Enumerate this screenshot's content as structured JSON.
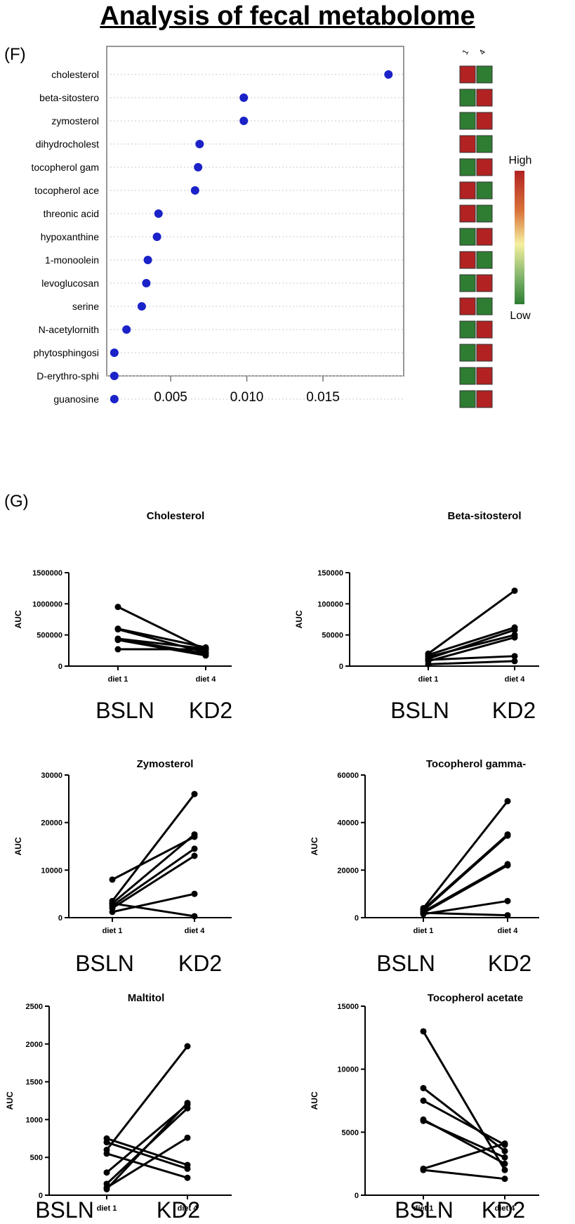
{
  "title": "Analysis of fecal metabolome",
  "panel_f": {
    "label": "(F)"
  },
  "panel_g": {
    "label": "(G)"
  },
  "colors": {
    "dot": "#1a22c8",
    "high": "#b22222",
    "low": "#2e7d32",
    "mid": "#f5f0a0"
  },
  "chart_data": [
    {
      "type": "scatter",
      "title": "",
      "xlabel": "",
      "ylabel": "",
      "xlim": [
        0.0008,
        0.0203
      ],
      "xticks": [
        "0.005",
        "0.010",
        "0.015"
      ],
      "xtick_values": [
        0.005,
        0.01,
        0.015
      ],
      "categories": [
        "cholesterol",
        "beta-sitostero",
        "zymosterol",
        "dihydrocholest",
        "tocopherol gam",
        "tocopherol ace",
        "threonic acid",
        "hypoxanthine",
        "1-monoolein",
        "levoglucosan",
        "serine",
        "N-acetylornith",
        "phytosphingosi",
        "D-erythro-sphi",
        "guanosine"
      ],
      "values": [
        0.0193,
        0.0098,
        0.0098,
        0.0069,
        0.0068,
        0.0066,
        0.0042,
        0.0041,
        0.0035,
        0.0034,
        0.0031,
        0.0021,
        0.0013,
        0.0013,
        0.0013
      ],
      "heatmap": {
        "column_labels": [
          "1",
          "4"
        ],
        "cells": [
          [
            "high",
            "low"
          ],
          [
            "low",
            "high"
          ],
          [
            "low",
            "high"
          ],
          [
            "high",
            "low"
          ],
          [
            "low",
            "high"
          ],
          [
            "high",
            "low"
          ],
          [
            "high",
            "low"
          ],
          [
            "low",
            "high"
          ],
          [
            "high",
            "low"
          ],
          [
            "low",
            "high"
          ],
          [
            "high",
            "low"
          ],
          [
            "low",
            "high"
          ],
          [
            "low",
            "high"
          ],
          [
            "low",
            "high"
          ],
          [
            "low",
            "high"
          ]
        ],
        "legend_high": "High",
        "legend_low": "Low"
      }
    },
    {
      "type": "line",
      "title": "Cholesterol",
      "ylabel": "AUC",
      "categories": [
        "diet 1",
        "diet 4"
      ],
      "group_labels": [
        "BSLN",
        "KD2"
      ],
      "ylim": [
        0,
        1500000
      ],
      "yticks": [
        "0",
        "500000",
        "1000000",
        "1500000"
      ],
      "ytick_values": [
        0,
        500000,
        1000000,
        1500000
      ],
      "series": [
        {
          "values": [
            950000,
            260000
          ]
        },
        {
          "values": [
            600000,
            300000
          ]
        },
        {
          "values": [
            590000,
            220000
          ]
        },
        {
          "values": [
            440000,
            280000
          ]
        },
        {
          "values": [
            430000,
            200000
          ]
        },
        {
          "values": [
            420000,
            170000
          ]
        },
        {
          "values": [
            270000,
            270000
          ]
        }
      ]
    },
    {
      "type": "line",
      "title": "Beta-sitosterol",
      "ylabel": "AUC",
      "categories": [
        "diet 1",
        "diet 4"
      ],
      "group_labels": [
        "BSLN",
        "KD2"
      ],
      "ylim": [
        0,
        150000
      ],
      "yticks": [
        "0",
        "50000",
        "100000",
        "150000"
      ],
      "ytick_values": [
        0,
        50000,
        100000,
        150000
      ],
      "series": [
        {
          "values": [
            20000,
            121000
          ]
        },
        {
          "values": [
            18000,
            62000
          ]
        },
        {
          "values": [
            12000,
            58000
          ]
        },
        {
          "values": [
            15000,
            50000
          ]
        },
        {
          "values": [
            8000,
            46000
          ]
        },
        {
          "values": [
            10000,
            16000
          ]
        },
        {
          "values": [
            3000,
            8000
          ]
        }
      ]
    },
    {
      "type": "line",
      "title": "Zymosterol",
      "ylabel": "AUC",
      "categories": [
        "diet 1",
        "diet 4"
      ],
      "group_labels": [
        "BSLN",
        "KD2"
      ],
      "ylim": [
        0,
        30000
      ],
      "yticks": [
        "0",
        "10000",
        "20000",
        "30000"
      ],
      "ytick_values": [
        0,
        10000,
        20000,
        30000
      ],
      "series": [
        {
          "values": [
            8000,
            17000
          ]
        },
        {
          "values": [
            3500,
            26000
          ]
        },
        {
          "values": [
            3000,
            17500
          ]
        },
        {
          "values": [
            2500,
            14500
          ]
        },
        {
          "values": [
            2000,
            13000
          ]
        },
        {
          "values": [
            1200,
            5000
          ]
        },
        {
          "values": [
            3000,
            300
          ]
        }
      ]
    },
    {
      "type": "line",
      "title": "Tocopherol gamma-",
      "ylabel": "AUC",
      "categories": [
        "diet 1",
        "diet 4"
      ],
      "group_labels": [
        "BSLN",
        "KD2"
      ],
      "ylim": [
        0,
        60000
      ],
      "yticks": [
        "0",
        "20000",
        "40000",
        "60000"
      ],
      "ytick_values": [
        0,
        20000,
        40000,
        60000
      ],
      "series": [
        {
          "values": [
            4000,
            49000
          ]
        },
        {
          "values": [
            3500,
            35000
          ]
        },
        {
          "values": [
            3000,
            34500
          ]
        },
        {
          "values": [
            2500,
            22500
          ]
        },
        {
          "values": [
            2000,
            22000
          ]
        },
        {
          "values": [
            1500,
            7000
          ]
        },
        {
          "values": [
            2000,
            1000
          ]
        }
      ]
    },
    {
      "type": "line",
      "title": "Maltitol",
      "ylabel": "AUC",
      "categories": [
        "diet 1",
        "diet 4"
      ],
      "group_labels": [
        "BSLN",
        "KD2"
      ],
      "ylim": [
        0,
        2500
      ],
      "yticks": [
        "0",
        "500",
        "1000",
        "1500",
        "2000",
        "2500"
      ],
      "ytick_values": [
        0,
        500,
        1000,
        1500,
        2000,
        2500
      ],
      "series": [
        {
          "values": [
            750,
            400
          ]
        },
        {
          "values": [
            600,
            1970
          ]
        },
        {
          "values": [
            550,
            230
          ]
        },
        {
          "values": [
            300,
            1200
          ]
        },
        {
          "values": [
            150,
            1150
          ]
        },
        {
          "values": [
            100,
            760
          ]
        },
        {
          "values": [
            700,
            350
          ]
        },
        {
          "values": [
            80,
            1220
          ]
        }
      ]
    },
    {
      "type": "line",
      "title": "Tocopherol acetate",
      "ylabel": "AUC",
      "categories": [
        "diet 1",
        "diet 4"
      ],
      "group_labels": [
        "BSLN",
        "KD2"
      ],
      "ylim": [
        0,
        15000
      ],
      "yticks": [
        "0",
        "5000",
        "10000",
        "15000"
      ],
      "ytick_values": [
        0,
        5000,
        10000,
        15000
      ],
      "series": [
        {
          "values": [
            13000,
            2000
          ]
        },
        {
          "values": [
            8500,
            3500
          ]
        },
        {
          "values": [
            7500,
            4000
          ]
        },
        {
          "values": [
            6000,
            2500
          ]
        },
        {
          "values": [
            5900,
            3000
          ]
        },
        {
          "values": [
            2100,
            4100
          ]
        },
        {
          "values": [
            2000,
            1300
          ]
        }
      ]
    }
  ]
}
